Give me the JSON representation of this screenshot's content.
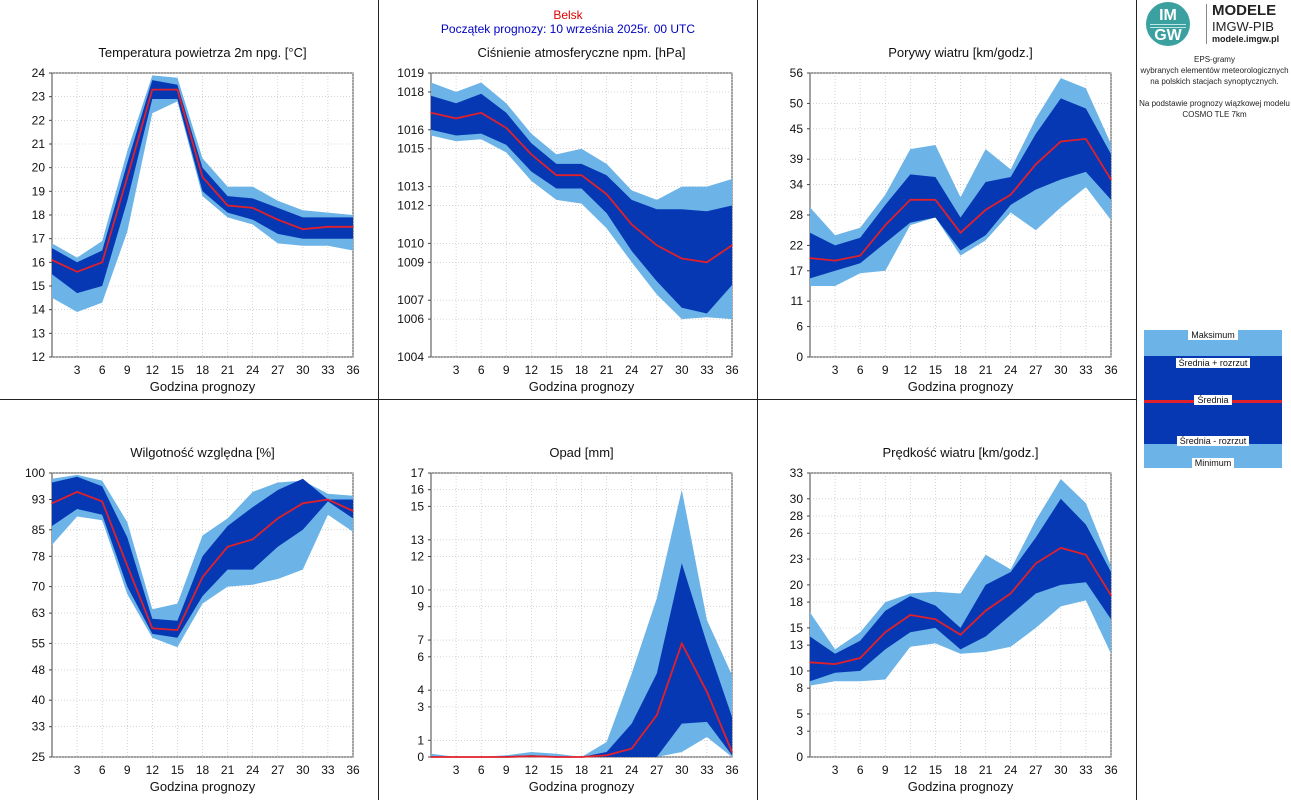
{
  "header": {
    "location": "Belsk",
    "start_line": "Początek prognozy: 10 września 2025r. 00 UTC"
  },
  "logo": {
    "circle_top": "IM",
    "circle_bottom": "GW",
    "line1": "MODELE",
    "line2": "IMGW-PIB",
    "line3": "modele.imgw.pl"
  },
  "side": {
    "desc_lines": [
      "EPS-gramy",
      "wybranych elementów meteorologicznych",
      "na polskich stacjach  synoptycznych.",
      "",
      "Na podstawie prognozy wiązkowej modelu",
      "COSMO TLE 7km"
    ]
  },
  "legend": {
    "max": "Maksimum",
    "mean_plus": "Średnia + rozrzut",
    "mean": "Średnia",
    "mean_minus": "Średnia - rozrzut",
    "min": "Minimum"
  },
  "colors": {
    "outer_band": "#6cb4e8",
    "inner_band": "#0638b4",
    "mean_line": "#e0202a",
    "grid": "#bbbbbb"
  },
  "chart_data": [
    {
      "type": "area",
      "title": "Temperatura powietrza 2m npg. [°C]",
      "xlabel": "Godzina prognozy",
      "xticks": [
        "3",
        "6",
        "9",
        "12",
        "15",
        "18",
        "21",
        "24",
        "27",
        "30",
        "33",
        "36"
      ],
      "yticks": [
        "12",
        "13",
        "14",
        "15",
        "16",
        "17",
        "18",
        "19",
        "20",
        "21",
        "22",
        "23",
        "24"
      ],
      "ylim": [
        12,
        24
      ],
      "x": [
        0,
        3,
        6,
        9,
        12,
        15,
        18,
        21,
        24,
        27,
        30,
        33,
        36
      ],
      "series": [
        {
          "name": "Maksimum",
          "values": [
            16.8,
            16.2,
            16.9,
            20.7,
            23.9,
            23.8,
            20.4,
            19.2,
            19.2,
            18.6,
            18.2,
            18.1,
            18.0
          ]
        },
        {
          "name": "Średnia + rozrzut",
          "values": [
            16.6,
            16.0,
            16.5,
            20.2,
            23.7,
            23.5,
            20.0,
            18.8,
            18.7,
            18.3,
            17.9,
            17.9,
            17.9
          ]
        },
        {
          "name": "Średnia",
          "values": [
            16.1,
            15.6,
            16.0,
            19.6,
            23.3,
            23.3,
            19.6,
            18.4,
            18.3,
            17.8,
            17.4,
            17.5,
            17.5
          ]
        },
        {
          "name": "Średnia - rozrzut",
          "values": [
            15.5,
            14.7,
            15.0,
            18.6,
            22.9,
            22.9,
            19.0,
            18.1,
            17.8,
            17.2,
            17.0,
            17.0,
            17.0
          ]
        },
        {
          "name": "Minimum",
          "values": [
            14.5,
            13.9,
            14.3,
            17.3,
            22.3,
            22.8,
            18.8,
            17.9,
            17.6,
            16.8,
            16.7,
            16.7,
            16.5
          ]
        }
      ]
    },
    {
      "type": "area",
      "title": "Ciśnienie atmosferyczne npm. [hPa]",
      "xlabel": "",
      "xticks": [
        "3",
        "6",
        "9",
        "12",
        "15",
        "18",
        "21",
        "24",
        "27",
        "30",
        "33",
        "36"
      ],
      "yticks": [
        "1004",
        "1006",
        "1007",
        "1009",
        "1010",
        "1012",
        "1013",
        "1015",
        "1016",
        "1018",
        "1019"
      ],
      "ylim": [
        1004,
        1019
      ],
      "x": [
        0,
        3,
        6,
        9,
        12,
        15,
        18,
        21,
        24,
        27,
        30,
        33,
        36
      ],
      "series": [
        {
          "name": "Maksimum",
          "values": [
            1018.5,
            1018.0,
            1018.5,
            1017.4,
            1015.8,
            1014.7,
            1015.0,
            1014.2,
            1012.8,
            1012.3,
            1013.0,
            1013.0,
            1013.4
          ]
        },
        {
          "name": "Średnia + rozrzut",
          "values": [
            1017.8,
            1017.4,
            1017.9,
            1016.9,
            1015.3,
            1014.2,
            1014.2,
            1013.6,
            1012.3,
            1011.8,
            1011.8,
            1011.7,
            1012.0
          ]
        },
        {
          "name": "Średnia",
          "values": [
            1016.9,
            1016.6,
            1016.9,
            1016.1,
            1014.7,
            1013.6,
            1013.6,
            1012.6,
            1011.0,
            1009.9,
            1009.2,
            1009.0,
            1009.9
          ]
        },
        {
          "name": "Średnia - rozrzut",
          "values": [
            1016.0,
            1015.7,
            1015.8,
            1015.2,
            1013.8,
            1012.9,
            1012.9,
            1011.6,
            1009.6,
            1008.0,
            1006.6,
            1006.3,
            1007.8
          ]
        },
        {
          "name": "Minimum",
          "values": [
            1015.7,
            1015.4,
            1015.5,
            1014.8,
            1013.3,
            1012.3,
            1012.1,
            1010.8,
            1009.0,
            1007.3,
            1006.0,
            1006.1,
            1006.0
          ]
        }
      ]
    },
    {
      "type": "area",
      "title": "Porywy wiatru [km/godz.]",
      "xlabel": "Godzina prognozy",
      "xticks": [
        "3",
        "6",
        "9",
        "12",
        "15",
        "18",
        "21",
        "24",
        "27",
        "30",
        "33",
        "36"
      ],
      "yticks": [
        "0",
        "6",
        "11",
        "17",
        "22",
        "28",
        "34",
        "39",
        "45",
        "50",
        "56"
      ],
      "ylim": [
        0,
        56
      ],
      "x": [
        0,
        3,
        6,
        9,
        12,
        15,
        18,
        21,
        24,
        27,
        30,
        33,
        36
      ],
      "series": [
        {
          "name": "Maksimum",
          "values": [
            29.5,
            24.0,
            25.5,
            32.0,
            41.0,
            41.8,
            31.5,
            41.0,
            37.0,
            47.0,
            55.0,
            53.0,
            42.0
          ]
        },
        {
          "name": "Średnia + rozrzut",
          "values": [
            24.5,
            22.0,
            23.5,
            30.0,
            36.0,
            35.5,
            27.5,
            34.5,
            35.5,
            44.0,
            51.0,
            49.0,
            40.0
          ]
        },
        {
          "name": "Średnia",
          "values": [
            19.5,
            19.0,
            20.0,
            26.0,
            31.0,
            31.0,
            24.5,
            29.0,
            32.0,
            38.0,
            42.5,
            43.0,
            35.0
          ]
        },
        {
          "name": "Średnia - rozrzut",
          "values": [
            15.5,
            17.0,
            18.5,
            22.5,
            26.5,
            27.5,
            21.0,
            24.0,
            30.0,
            33.0,
            35.0,
            36.5,
            31.0
          ]
        },
        {
          "name": "Minimum",
          "values": [
            14.0,
            14.0,
            16.5,
            17.0,
            26.0,
            27.5,
            20.0,
            23.0,
            28.5,
            25.0,
            29.5,
            33.5,
            27.0
          ]
        }
      ]
    },
    {
      "type": "area",
      "title": "Wilgotność względna [%]",
      "xlabel": "Godzina prognozy",
      "xticks": [
        "3",
        "6",
        "9",
        "12",
        "15",
        "18",
        "21",
        "24",
        "27",
        "30",
        "33",
        "36"
      ],
      "yticks": [
        "25",
        "33",
        "40",
        "48",
        "55",
        "63",
        "70",
        "78",
        "85",
        "93",
        "100"
      ],
      "ylim": [
        25,
        100
      ],
      "x": [
        0,
        3,
        6,
        9,
        12,
        15,
        18,
        21,
        24,
        27,
        30,
        33,
        36
      ],
      "series": [
        {
          "name": "Maksimum",
          "values": [
            98.5,
            99.5,
            98.0,
            87.0,
            64.0,
            65.5,
            83.5,
            88.0,
            95.0,
            97.5,
            98.0,
            94.5,
            94.0
          ]
        },
        {
          "name": "Średnia + rozrzut",
          "values": [
            97.5,
            99.0,
            96.5,
            83.0,
            61.5,
            61.0,
            78.0,
            86.0,
            91.0,
            95.5,
            98.5,
            93.0,
            93.0
          ]
        },
        {
          "name": "Średnia",
          "values": [
            92.0,
            95.0,
            92.5,
            75.5,
            59.0,
            58.5,
            72.5,
            80.5,
            82.5,
            88.0,
            92.0,
            93.0,
            90.0
          ]
        },
        {
          "name": "Średnia - rozrzut",
          "values": [
            86.0,
            90.5,
            89.0,
            70.0,
            57.5,
            56.5,
            67.5,
            74.5,
            74.5,
            80.5,
            85.0,
            92.5,
            88.0
          ]
        },
        {
          "name": "Minimum",
          "values": [
            81.0,
            88.5,
            87.5,
            68.0,
            56.5,
            54.0,
            65.5,
            70.0,
            70.5,
            72.0,
            74.5,
            89.0,
            84.5
          ]
        }
      ]
    },
    {
      "type": "area",
      "title": "Opad [mm]",
      "xlabel": "Godzina prognozy",
      "xticks": [
        "3",
        "6",
        "9",
        "12",
        "15",
        "18",
        "21",
        "24",
        "27",
        "30",
        "33",
        "36"
      ],
      "yticks": [
        "0",
        "1",
        "3",
        "4",
        "6",
        "7",
        "9",
        "10",
        "12",
        "13",
        "15",
        "16",
        "17"
      ],
      "ylim": [
        0,
        17
      ],
      "x": [
        0,
        3,
        6,
        9,
        12,
        15,
        18,
        21,
        24,
        27,
        30,
        33,
        36
      ],
      "series": [
        {
          "name": "Maksimum",
          "values": [
            0.2,
            0.0,
            0.0,
            0.1,
            0.3,
            0.2,
            0.0,
            0.9,
            5.0,
            9.5,
            16.0,
            8.2,
            4.9
          ]
        },
        {
          "name": "Średnia + rozrzut",
          "values": [
            0.05,
            0.0,
            0.0,
            0.05,
            0.1,
            0.05,
            0.0,
            0.3,
            2.0,
            5.0,
            11.6,
            6.8,
            2.4
          ]
        },
        {
          "name": "Średnia",
          "values": [
            0.0,
            0.0,
            0.0,
            0.0,
            0.05,
            0.0,
            0.0,
            0.1,
            0.5,
            2.5,
            6.8,
            3.9,
            0.3
          ]
        },
        {
          "name": "Średnia - rozrzut",
          "values": [
            0.0,
            0.0,
            0.0,
            0.0,
            0.0,
            0.0,
            0.0,
            0.0,
            0.0,
            0.0,
            2.0,
            2.1,
            0.1
          ]
        },
        {
          "name": "Minimum",
          "values": [
            0.0,
            0.0,
            0.0,
            0.0,
            0.0,
            0.0,
            0.0,
            0.0,
            0.0,
            0.0,
            0.3,
            1.2,
            0.0
          ]
        }
      ]
    },
    {
      "type": "area",
      "title": "Prędkość wiatru [km/godz.]",
      "xlabel": "Godzina prognozy",
      "xticks": [
        "3",
        "6",
        "9",
        "12",
        "15",
        "18",
        "21",
        "24",
        "27",
        "30",
        "33",
        "36"
      ],
      "yticks": [
        "0",
        "3",
        "5",
        "8",
        "10",
        "13",
        "15",
        "18",
        "20",
        "23",
        "26",
        "28",
        "30",
        "33"
      ],
      "ylim": [
        0,
        33
      ],
      "x": [
        0,
        3,
        6,
        9,
        12,
        15,
        18,
        21,
        24,
        27,
        30,
        33,
        36
      ],
      "series": [
        {
          "name": "Maksimum",
          "values": [
            16.8,
            12.5,
            14.5,
            18.0,
            19.0,
            19.2,
            19.0,
            23.5,
            21.8,
            27.5,
            32.3,
            29.5,
            22.2
          ]
        },
        {
          "name": "Średnia + rozrzut",
          "values": [
            14.0,
            12.0,
            13.5,
            17.0,
            18.7,
            17.6,
            15.0,
            20.0,
            21.5,
            25.5,
            30.0,
            27.0,
            21.5
          ]
        },
        {
          "name": "Średnia",
          "values": [
            11.0,
            10.8,
            11.5,
            14.5,
            16.5,
            16.0,
            14.2,
            17.0,
            19.0,
            22.5,
            24.3,
            23.5,
            18.8
          ]
        },
        {
          "name": "Średnia - rozrzut",
          "values": [
            8.8,
            9.8,
            10.0,
            12.5,
            14.5,
            15.0,
            12.5,
            14.0,
            16.5,
            19.0,
            20.0,
            20.3,
            16.0
          ]
        },
        {
          "name": "Minimum",
          "values": [
            8.3,
            8.8,
            8.8,
            9.0,
            12.8,
            13.2,
            12.0,
            12.2,
            12.8,
            15.0,
            17.5,
            18.2,
            12.0
          ]
        }
      ]
    }
  ]
}
